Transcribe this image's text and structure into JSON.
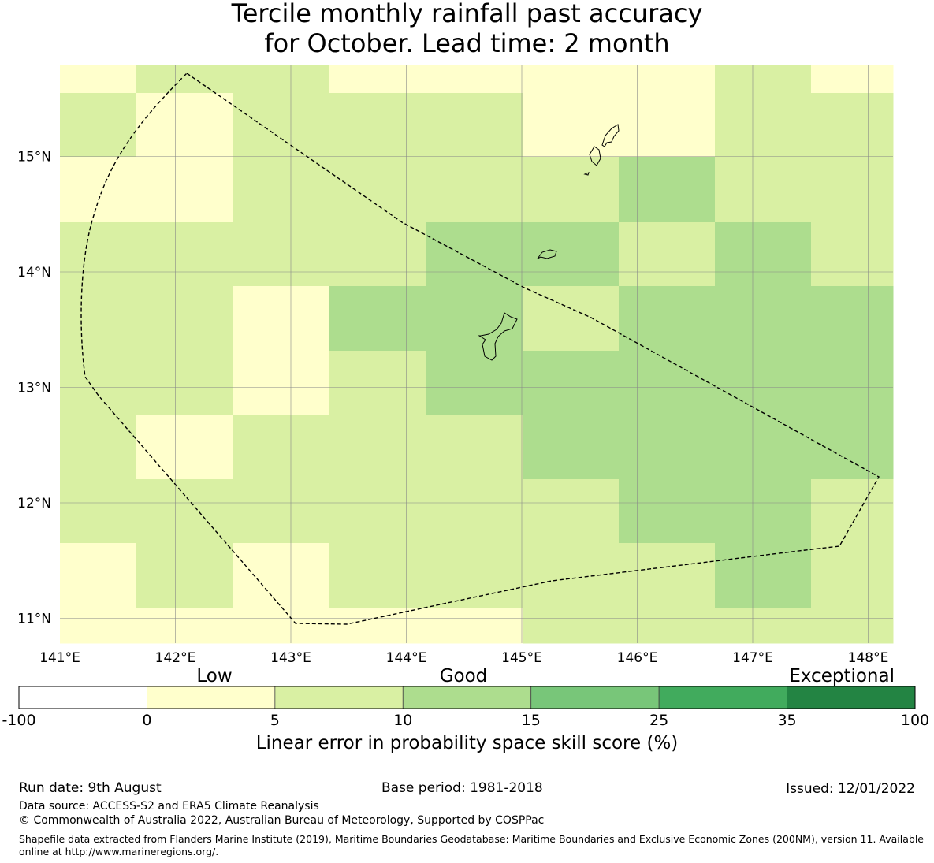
{
  "title": {
    "line1": "Tercile monthly rainfall past accuracy",
    "line2": "for October. Lead time: 2 month"
  },
  "map": {
    "lon_ticks": [
      "141°E",
      "142°E",
      "143°E",
      "144°E",
      "145°E",
      "146°E",
      "147°E",
      "148°E"
    ],
    "lat_ticks": [
      "15°N",
      "14°N",
      "13°N",
      "12°N",
      "11°N"
    ],
    "grid_cells": [
      [
        0,
        1,
        1,
        0,
        0,
        0,
        0,
        1,
        0
      ],
      [
        1,
        0,
        1,
        1,
        1,
        0,
        0,
        1,
        1
      ],
      [
        0,
        0,
        1,
        1,
        1,
        1,
        2,
        1,
        1
      ],
      [
        1,
        1,
        1,
        1,
        2,
        2,
        1,
        2,
        1
      ],
      [
        1,
        1,
        0,
        2,
        2,
        1,
        2,
        2,
        2
      ],
      [
        1,
        1,
        0,
        1,
        2,
        2,
        2,
        2,
        2
      ],
      [
        1,
        0,
        1,
        1,
        1,
        2,
        2,
        2,
        2
      ],
      [
        1,
        1,
        1,
        1,
        1,
        1,
        2,
        2,
        1
      ],
      [
        0,
        1,
        0,
        1,
        1,
        1,
        1,
        2,
        1
      ],
      [
        0,
        0,
        0,
        0,
        0,
        1,
        1,
        1,
        1
      ]
    ]
  },
  "colorbar": {
    "categories": [
      "Low",
      "Good",
      "Exceptional"
    ],
    "colors": [
      "#ffffff",
      "#ffffcc",
      "#d9f0a3",
      "#addd8e",
      "#78c679",
      "#41ab5d",
      "#238443"
    ],
    "tick_labels": [
      "-100",
      "0",
      "5",
      "10",
      "15",
      "25",
      "35",
      "100"
    ],
    "label": "Linear error in probability space skill score (%)"
  },
  "footer": {
    "run_date": "Run date: 9th August",
    "base_period": "Base period: 1981-2018",
    "issued": "Issued: 12/01/2022",
    "data_source": "Data source: ACCESS-S2 and ERA5 Climate Reanalysis",
    "copyright": "© Commonwealth of Australia 2022, Australian Bureau of Meteorology, Supported by COSPPac",
    "shapefile": "Shapefile data extracted from Flanders Marine Institute (2019), Maritime Boundaries Geodatabase: Maritime Boundaries and Exclusive Economic Zones (200NM), version 11. Available online at http://www.marineregions.org/."
  }
}
